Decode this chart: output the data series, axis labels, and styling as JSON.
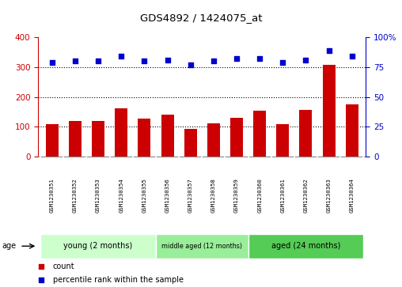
{
  "title": "GDS4892 / 1424075_at",
  "samples": [
    "GSM1230351",
    "GSM1230352",
    "GSM1230353",
    "GSM1230354",
    "GSM1230355",
    "GSM1230356",
    "GSM1230357",
    "GSM1230358",
    "GSM1230359",
    "GSM1230360",
    "GSM1230361",
    "GSM1230362",
    "GSM1230363",
    "GSM1230364"
  ],
  "counts": [
    108,
    120,
    118,
    162,
    128,
    140,
    92,
    112,
    130,
    153,
    108,
    155,
    307,
    175
  ],
  "percentile_ranks": [
    79,
    80,
    80,
    84,
    80,
    81,
    77,
    80,
    82,
    82,
    79,
    81,
    89,
    84
  ],
  "bar_color": "#cc0000",
  "dot_color": "#0000cc",
  "ylim_left": [
    0,
    400
  ],
  "ylim_right": [
    0,
    100
  ],
  "yticks_left": [
    0,
    100,
    200,
    300,
    400
  ],
  "yticks_right": [
    0,
    25,
    50,
    75,
    100
  ],
  "ytick_labels_right": [
    "0",
    "25",
    "50",
    "75",
    "100%"
  ],
  "group_colors": [
    "#ccffcc",
    "#99ee99",
    "#55cc55"
  ],
  "groups": [
    {
      "label": "young (2 months)",
      "start": 0,
      "end": 5
    },
    {
      "label": "middle aged (12 months)",
      "start": 5,
      "end": 9
    },
    {
      "label": "aged (24 months)",
      "start": 9,
      "end": 14
    }
  ],
  "legend_count_label": "count",
  "legend_percentile_label": "percentile rank within the sample",
  "age_label": "age",
  "background_color": "#ffffff",
  "tick_color_left": "#cc0000",
  "tick_color_right": "#0000cc",
  "sample_box_color": "#cccccc",
  "sample_box_border": "#ffffff"
}
